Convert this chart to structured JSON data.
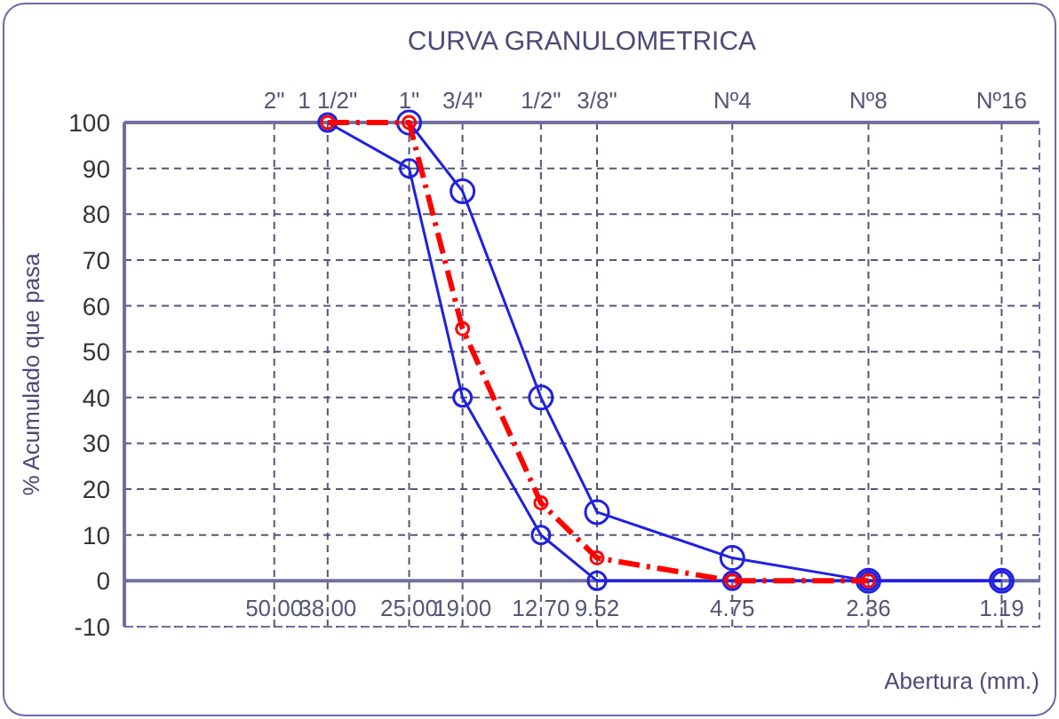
{
  "chart_data": {
    "type": "line",
    "title": "CURVA GRANULOMETRICA",
    "xlabel": "Abertura (mm.)",
    "ylabel": "% Acumulado que pasa",
    "log": "x",
    "xlim": [
      108,
      0.98
    ],
    "xticks": [
      {
        "value": 50,
        "label": "50.00"
      },
      {
        "value": 38,
        "label": "38.00"
      },
      {
        "value": 25,
        "label": "25.00"
      },
      {
        "value": 19,
        "label": "19.00"
      },
      {
        "value": 12.7,
        "label": "12.70"
      },
      {
        "value": 9.52,
        "label": "9.52"
      },
      {
        "value": 4.75,
        "label": "4.75"
      },
      {
        "value": 2.36,
        "label": "2.36"
      },
      {
        "value": 1.19,
        "label": "1.19"
      }
    ],
    "annotations": [
      "2\"",
      "1 1/2\"",
      "1\"",
      "3/4\"",
      "1/2\"",
      "3/8\"",
      "Nº4",
      "Nº8",
      "Nº16"
    ],
    "ref_lines": [
      {
        "axis": "y",
        "value": 0,
        "color": "#7070a0"
      }
    ],
    "ylim": [
      -10,
      100
    ],
    "yticks": [
      -10,
      0,
      10,
      20,
      30,
      40,
      50,
      60,
      70,
      80,
      90,
      100
    ],
    "grid": true,
    "marker": "circle",
    "series": [
      {
        "color": "#2020e0",
        "x": [
          25,
          19,
          12.7,
          9.52,
          4.75,
          2.36,
          1.19
        ],
        "values": [
          100,
          85,
          40,
          15,
          5,
          0,
          0
        ],
        "line_style": "solid"
      },
      {
        "color": "#2020e0",
        "x": [
          38,
          25,
          19,
          12.7,
          9.52,
          4.75,
          2.36,
          1.19
        ],
        "values": [
          100,
          90,
          40,
          10,
          0,
          0,
          0,
          0
        ],
        "line_style": "solid"
      },
      {
        "color": "#ff0000",
        "x": [
          38,
          25,
          19,
          12.7,
          9.52,
          4.75,
          2.36
        ],
        "values": [
          100,
          100,
          55,
          17,
          5,
          0,
          0
        ],
        "line_style": "dashed"
      }
    ]
  }
}
